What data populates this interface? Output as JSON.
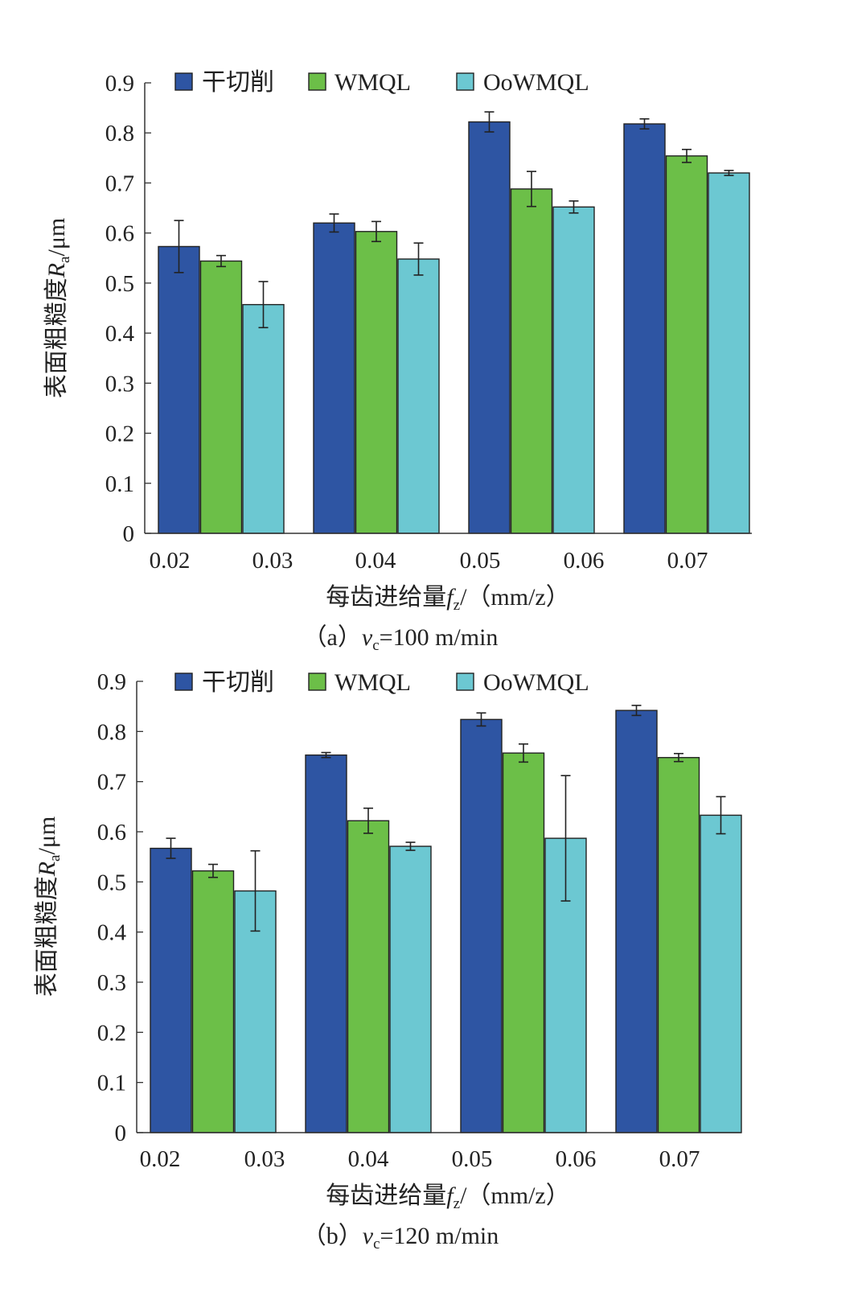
{
  "colors": {
    "dry": "#2E55A3",
    "wmql": "#6CBF48",
    "oowmql": "#6CC8D2",
    "axis": "#333333",
    "bar_edge": "#222222"
  },
  "chart_data": [
    {
      "type": "bar",
      "caption": "（a）vc=100 m/min",
      "caption_parts": [
        "（a）",
        "v",
        "c",
        "=100 m/min"
      ],
      "xlabel": "每齿进给量fz/（mm/z）",
      "xlabel_parts": [
        "每齿进给量",
        "f",
        "z",
        "/（mm/z）"
      ],
      "ylabel": "表面粗糙度Ra/μm",
      "ylabel_parts": [
        "表面粗糙度",
        "R",
        "a",
        "/μm"
      ],
      "ylim": [
        0,
        0.9
      ],
      "yticks": [
        "0",
        "0.1",
        "0.2",
        "0.3",
        "0.4",
        "0.5",
        "0.6",
        "0.7",
        "0.8",
        "0.9"
      ],
      "xtick_labels": [
        "0.02",
        "0.03",
        "0.04",
        "0.05",
        "0.06",
        "0.07"
      ],
      "legend_position": "top",
      "group_count": 4,
      "series": [
        {
          "name": "干切削",
          "color_key": "dry",
          "values": [
            0.573,
            0.62,
            0.822,
            0.818
          ],
          "errors": [
            0.052,
            0.018,
            0.02,
            0.01
          ]
        },
        {
          "name": "WMQL",
          "color_key": "wmql",
          "values": [
            0.544,
            0.603,
            0.688,
            0.754
          ],
          "errors": [
            0.011,
            0.02,
            0.035,
            0.013
          ]
        },
        {
          "name": "OoWMQL",
          "color_key": "oowmql",
          "values": [
            0.457,
            0.548,
            0.652,
            0.72
          ],
          "errors": [
            0.046,
            0.032,
            0.012,
            0.005
          ]
        }
      ]
    },
    {
      "type": "bar",
      "caption": "（b）vc=120 m/min",
      "caption_parts": [
        "（b）",
        "v",
        "c",
        "=120 m/min"
      ],
      "xlabel": "每齿进给量fz/（mm/z）",
      "xlabel_parts": [
        "每齿进给量",
        "f",
        "z",
        "/（mm/z）"
      ],
      "ylabel": "表面粗糙度Ra/μm",
      "ylabel_parts": [
        "表面粗糙度",
        "R",
        "a",
        "/μm"
      ],
      "ylim": [
        0,
        0.9
      ],
      "yticks": [
        "0",
        "0.1",
        "0.2",
        "0.3",
        "0.4",
        "0.5",
        "0.6",
        "0.7",
        "0.8",
        "0.9"
      ],
      "xtick_labels": [
        "0.02",
        "0.03",
        "0.04",
        "0.05",
        "0.06",
        "0.07"
      ],
      "legend_position": "top",
      "group_count": 4,
      "series": [
        {
          "name": "干切削",
          "color_key": "dry",
          "values": [
            0.567,
            0.753,
            0.824,
            0.842
          ],
          "errors": [
            0.02,
            0.005,
            0.013,
            0.01
          ]
        },
        {
          "name": "WMQL",
          "color_key": "wmql",
          "values": [
            0.522,
            0.622,
            0.757,
            0.748
          ],
          "errors": [
            0.013,
            0.025,
            0.018,
            0.008
          ]
        },
        {
          "name": "OoWMQL",
          "color_key": "oowmql",
          "values": [
            0.482,
            0.571,
            0.587,
            0.633
          ],
          "errors": [
            0.08,
            0.008,
            0.125,
            0.037
          ]
        }
      ]
    }
  ]
}
